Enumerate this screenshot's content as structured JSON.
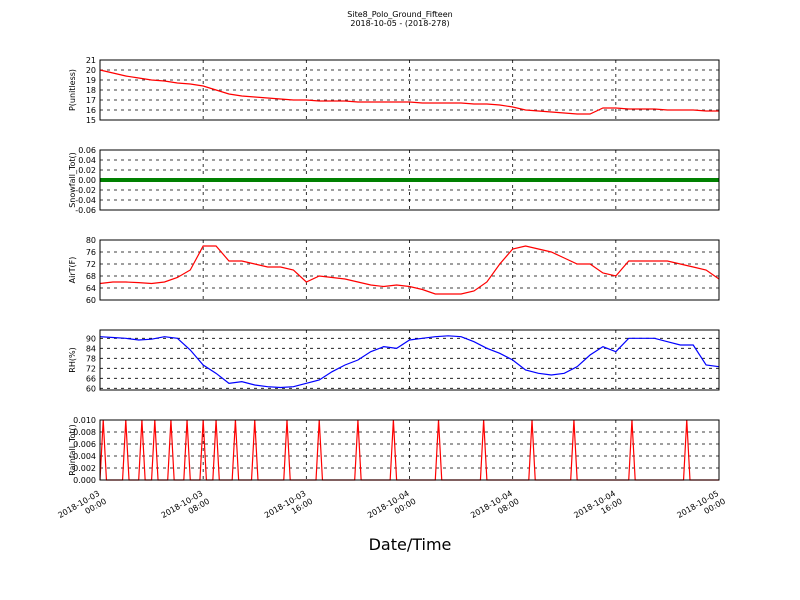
{
  "chart_data": {
    "type": "line",
    "title": "Site8_Polo_Ground_Fifteen",
    "subtitle": "2018-10-05 - (2018-278)",
    "xlabel": "Date/Time",
    "grid": true,
    "xlim": [
      "2018-10-03 00:00",
      "2018-10-05 00:00"
    ],
    "xticks": [
      "2018-10-03 00:00",
      "2018-10-03 08:00",
      "2018-10-03 16:00",
      "2018-10-04 00:00",
      "2018-10-04 08:00",
      "2018-10-04 16:00",
      "2018-10-05 00:00"
    ],
    "x": [
      "2018-10-03 00:00",
      "2018-10-03 01:00",
      "2018-10-03 02:00",
      "2018-10-03 03:00",
      "2018-10-03 04:00",
      "2018-10-03 05:00",
      "2018-10-03 06:00",
      "2018-10-03 07:00",
      "2018-10-03 08:00",
      "2018-10-03 09:00",
      "2018-10-03 10:00",
      "2018-10-03 11:00",
      "2018-10-03 12:00",
      "2018-10-03 13:00",
      "2018-10-03 14:00",
      "2018-10-03 15:00",
      "2018-10-03 16:00",
      "2018-10-03 17:00",
      "2018-10-03 18:00",
      "2018-10-03 19:00",
      "2018-10-03 20:00",
      "2018-10-03 21:00",
      "2018-10-03 22:00",
      "2018-10-03 23:00",
      "2018-10-04 00:00",
      "2018-10-04 01:00",
      "2018-10-04 02:00",
      "2018-10-04 03:00",
      "2018-10-04 04:00",
      "2018-10-04 05:00",
      "2018-10-04 06:00",
      "2018-10-04 07:00",
      "2018-10-04 08:00",
      "2018-10-04 09:00",
      "2018-10-04 10:00",
      "2018-10-04 11:00",
      "2018-10-04 12:00",
      "2018-10-04 13:00",
      "2018-10-04 14:00",
      "2018-10-04 15:00",
      "2018-10-04 16:00",
      "2018-10-04 17:00",
      "2018-10-04 18:00",
      "2018-10-04 19:00",
      "2018-10-04 20:00",
      "2018-10-04 21:00",
      "2018-10-04 22:00",
      "2018-10-04 23:00",
      "2018-10-05 00:00"
    ],
    "panels": [
      {
        "ylabel": "P(unitless)",
        "color": "#ff0000",
        "ylim": [
          15,
          21
        ],
        "yticks": [
          15,
          16,
          17,
          18,
          19,
          20,
          21
        ],
        "values": [
          20.0,
          19.7,
          19.4,
          19.2,
          19.0,
          18.9,
          18.7,
          18.6,
          18.4,
          18.0,
          17.6,
          17.4,
          17.3,
          17.2,
          17.1,
          17.0,
          17.0,
          16.9,
          16.9,
          16.9,
          16.8,
          16.8,
          16.8,
          16.8,
          16.8,
          16.7,
          16.7,
          16.7,
          16.7,
          16.6,
          16.6,
          16.5,
          16.3,
          16.0,
          15.9,
          15.8,
          15.7,
          15.6,
          15.6,
          16.2,
          16.2,
          16.1,
          16.1,
          16.1,
          16.0,
          16.0,
          16.0,
          15.9,
          15.9
        ]
      },
      {
        "ylabel": "Snowfall_Tot()",
        "color": "#008000",
        "ylim": [
          -0.06,
          0.06
        ],
        "yticks": [
          -0.06,
          -0.04,
          -0.02,
          {
            "value": 0,
            "label": "0.00"
          },
          0.02,
          0.04,
          0.06
        ],
        "values": [
          0,
          0,
          0,
          0,
          0,
          0,
          0,
          0,
          0,
          0,
          0,
          0,
          0,
          0,
          0,
          0,
          0,
          0,
          0,
          0,
          0,
          0,
          0,
          0,
          0,
          0,
          0,
          0,
          0,
          0,
          0,
          0,
          0,
          0,
          0,
          0,
          0,
          0,
          0,
          0,
          0,
          0,
          0,
          0,
          0,
          0,
          0,
          0,
          0
        ]
      },
      {
        "ylabel": "AirT(F)",
        "color": "#ff0000",
        "ylim": [
          60,
          80
        ],
        "yticks": [
          60,
          64,
          68,
          72,
          76,
          80
        ],
        "values": [
          65.5,
          66,
          66,
          65.8,
          65.5,
          66,
          67.5,
          70,
          78,
          78,
          73,
          73,
          72,
          71,
          71,
          70,
          66,
          68,
          67.5,
          67,
          66,
          65,
          64.5,
          65,
          64.5,
          63.5,
          62,
          62,
          62,
          63,
          66,
          72,
          77,
          78,
          77,
          76,
          74,
          72,
          72,
          69,
          68,
          73,
          73,
          73,
          73,
          72,
          71,
          70,
          67
        ]
      },
      {
        "ylabel": "RH(%)",
        "color": "#0000ff",
        "ylim": [
          59,
          95
        ],
        "yticks": [
          60,
          66,
          72,
          78,
          84,
          90
        ],
        "values": [
          91,
          90.5,
          90,
          89,
          89.5,
          91,
          90,
          83,
          74,
          69,
          63,
          64,
          62,
          61,
          60.5,
          61,
          63,
          65,
          70,
          74,
          77,
          82,
          85,
          84,
          89,
          90,
          91,
          91.5,
          91,
          88,
          84,
          81,
          77,
          71,
          69,
          68,
          69,
          73,
          80,
          85,
          82,
          90,
          90,
          90,
          88,
          86,
          86,
          74,
          73
        ]
      },
      {
        "ylabel": "Rainfall_Tot()",
        "color": "#ff0000",
        "ylim": [
          0,
          0.01
        ],
        "yticks": [
          {
            "value": 0,
            "label": "0.000"
          },
          0.002,
          0.004,
          0.006,
          0.008,
          {
            "value": 0.01,
            "label": "0.010"
          }
        ],
        "x": [
          "2018-10-03 00:00",
          "2018-10-03 00:15",
          "2018-10-03 00:30",
          "2018-10-03 01:45",
          "2018-10-03 02:00",
          "2018-10-03 02:15",
          "2018-10-03 03:00",
          "2018-10-03 03:15",
          "2018-10-03 03:30",
          "2018-10-03 04:00",
          "2018-10-03 04:15",
          "2018-10-03 04:30",
          "2018-10-03 05:15",
          "2018-10-03 05:30",
          "2018-10-03 05:45",
          "2018-10-03 06:30",
          "2018-10-03 06:45",
          "2018-10-03 07:00",
          "2018-10-03 07:45",
          "2018-10-03 08:00",
          "2018-10-03 08:15",
          "2018-10-03 08:45",
          "2018-10-03 09:00",
          "2018-10-03 09:15",
          "2018-10-03 10:15",
          "2018-10-03 10:30",
          "2018-10-03 10:45",
          "2018-10-03 11:45",
          "2018-10-03 12:00",
          "2018-10-03 12:15",
          "2018-10-03 14:15",
          "2018-10-03 14:30",
          "2018-10-03 14:45",
          "2018-10-03 16:45",
          "2018-10-03 17:00",
          "2018-10-03 17:15",
          "2018-10-03 19:45",
          "2018-10-03 20:00",
          "2018-10-03 20:15",
          "2018-10-03 22:30",
          "2018-10-03 22:45",
          "2018-10-03 23:00",
          "2018-10-04 02:00",
          "2018-10-04 02:15",
          "2018-10-04 02:30",
          "2018-10-04 05:30",
          "2018-10-04 05:45",
          "2018-10-04 06:00",
          "2018-10-04 09:15",
          "2018-10-04 09:30",
          "2018-10-04 09:45",
          "2018-10-04 12:30",
          "2018-10-04 12:45",
          "2018-10-04 13:00",
          "2018-10-04 17:00",
          "2018-10-04 17:15",
          "2018-10-04 17:30",
          "2018-10-04 21:15",
          "2018-10-04 21:30",
          "2018-10-04 21:45",
          "2018-10-05 00:00"
        ],
        "values": [
          0,
          0.01,
          0,
          0,
          0.01,
          0,
          0,
          0.01,
          0,
          0,
          0.01,
          0,
          0,
          0.01,
          0,
          0,
          0.01,
          0,
          0,
          0.01,
          0,
          0,
          0.01,
          0,
          0,
          0.01,
          0,
          0,
          0.01,
          0,
          0,
          0.01,
          0,
          0,
          0.01,
          0,
          0,
          0.01,
          0,
          0,
          0.01,
          0,
          0,
          0.01,
          0,
          0,
          0.01,
          0,
          0,
          0.01,
          0,
          0,
          0.01,
          0,
          0,
          0.01,
          0,
          0,
          0.01,
          0,
          0
        ]
      }
    ]
  }
}
